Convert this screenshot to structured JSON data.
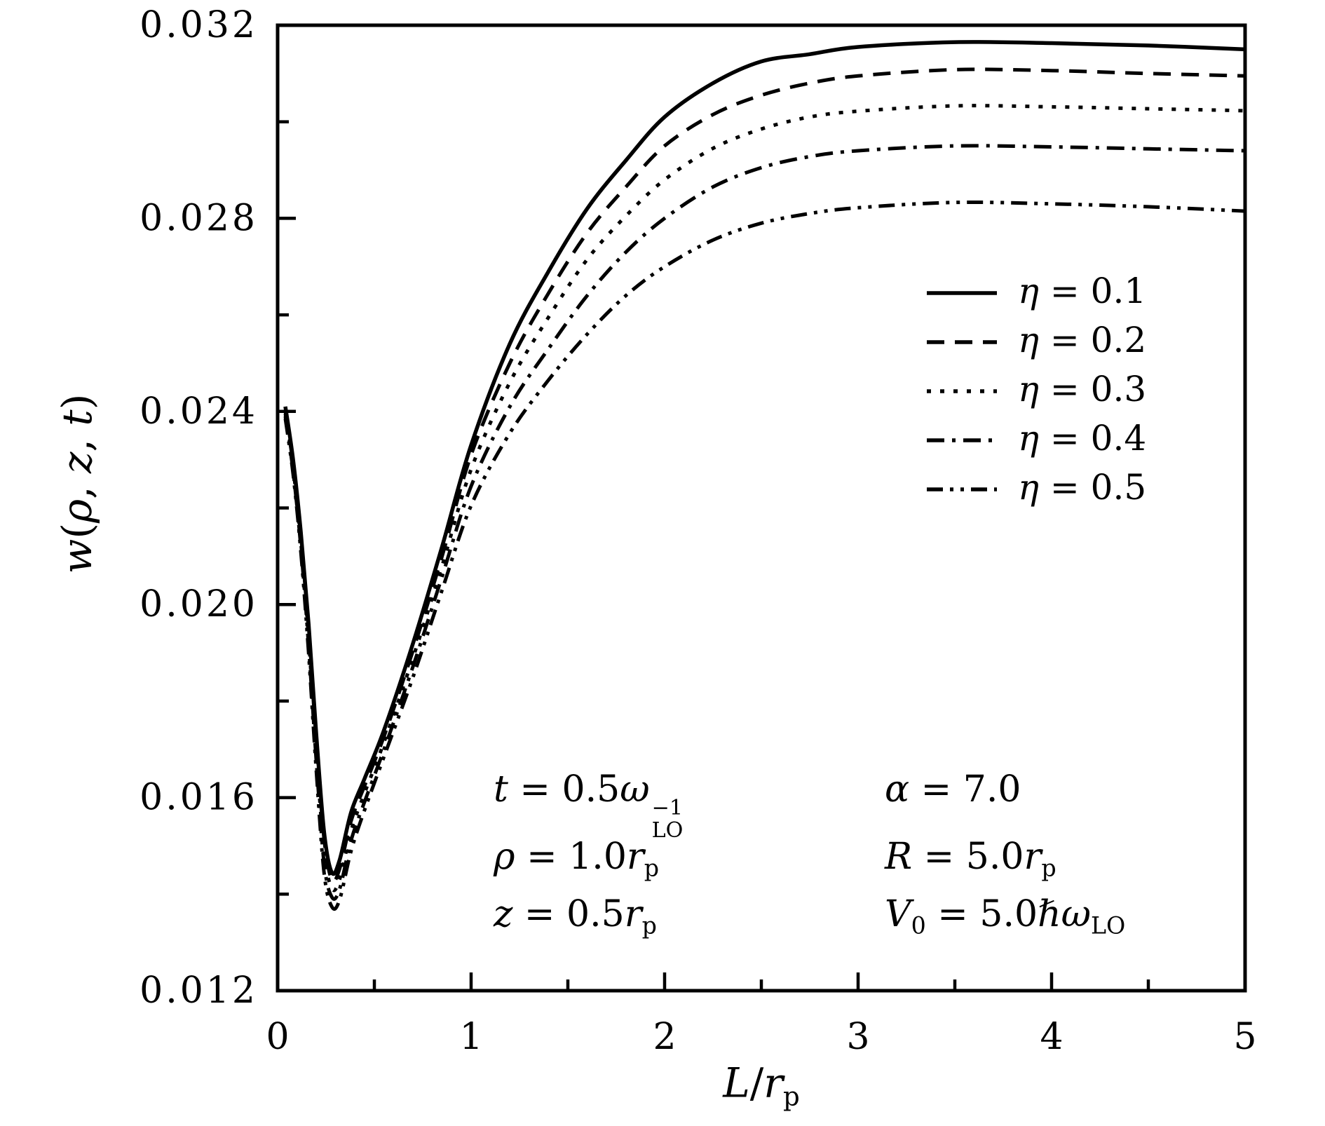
{
  "figure": {
    "background": "#ffffff",
    "line_color": "#000000",
    "xlabel_tokens": [
      {
        "t": "i",
        "v": "L"
      },
      {
        "t": "n",
        "v": "/"
      },
      {
        "t": "i",
        "v": "r"
      },
      {
        "t": "sub",
        "v": "p"
      }
    ],
    "ylabel_tokens": [
      {
        "t": "i",
        "v": "w"
      },
      {
        "t": "n",
        "v": "("
      },
      {
        "t": "i",
        "v": "ρ"
      },
      {
        "t": "n",
        "v": ", "
      },
      {
        "t": "i",
        "v": "z"
      },
      {
        "t": "n",
        "v": ", "
      },
      {
        "t": "i",
        "v": "t"
      },
      {
        "t": "n",
        "v": ")"
      }
    ]
  },
  "axes": {
    "x": {
      "range": [
        0,
        5
      ],
      "major": [
        0,
        1,
        2,
        3,
        4,
        5
      ],
      "tick_labels": [
        "0",
        "1",
        "2",
        "3",
        "4",
        "5"
      ],
      "minor": [
        0.5,
        1.5,
        2.5,
        3.5,
        4.5
      ]
    },
    "y": {
      "range": [
        0.012,
        0.032
      ],
      "major": [
        0.012,
        0.016,
        0.02,
        0.024,
        0.028,
        0.032
      ],
      "tick_labels": [
        "0.012",
        "0.016",
        "0.020",
        "0.024",
        "0.028",
        "0.032"
      ],
      "minor": [
        0.014,
        0.018,
        0.022,
        0.026,
        0.03
      ]
    }
  },
  "legend": {
    "entries": [
      {
        "style": "solid",
        "tokens": [
          {
            "t": "i",
            "v": "η"
          },
          {
            "t": "n",
            "v": " = 0.1"
          }
        ]
      },
      {
        "style": "dashed",
        "tokens": [
          {
            "t": "i",
            "v": "η"
          },
          {
            "t": "n",
            "v": " = 0.2"
          }
        ]
      },
      {
        "style": "dotted",
        "tokens": [
          {
            "t": "i",
            "v": "η"
          },
          {
            "t": "n",
            "v": " = 0.3"
          }
        ]
      },
      {
        "style": "dashdot",
        "tokens": [
          {
            "t": "i",
            "v": "η"
          },
          {
            "t": "n",
            "v": " = 0.4"
          }
        ]
      },
      {
        "style": "dashdotdot",
        "tokens": [
          {
            "t": "i",
            "v": "η"
          },
          {
            "t": "n",
            "v": " = 0.5"
          }
        ]
      }
    ]
  },
  "annotations": {
    "left": [
      {
        "tokens": [
          {
            "t": "i",
            "v": "t"
          },
          {
            "t": "n",
            "v": " = 0.5"
          },
          {
            "t": "i",
            "v": "ω"
          },
          {
            "t": "ss",
            "sup": "−1",
            "sub": "LO"
          }
        ]
      },
      {
        "tokens": [
          {
            "t": "i",
            "v": "ρ"
          },
          {
            "t": "n",
            "v": " = 1.0"
          },
          {
            "t": "i",
            "v": "r"
          },
          {
            "t": "sub",
            "v": "p"
          }
        ]
      },
      {
        "tokens": [
          {
            "t": "i",
            "v": "z"
          },
          {
            "t": "n",
            "v": " = 0.5"
          },
          {
            "t": "i",
            "v": "r"
          },
          {
            "t": "sub",
            "v": "p"
          }
        ]
      }
    ],
    "right": [
      {
        "tokens": [
          {
            "t": "i",
            "v": "α"
          },
          {
            "t": "n",
            "v": " = 7.0"
          }
        ]
      },
      {
        "tokens": [
          {
            "t": "i",
            "v": "R"
          },
          {
            "t": "n",
            "v": " = 5.0"
          },
          {
            "t": "i",
            "v": "r"
          },
          {
            "t": "sub",
            "v": "p"
          }
        ]
      },
      {
        "tokens": [
          {
            "t": "i",
            "v": "V"
          },
          {
            "t": "sub",
            "v": "0"
          },
          {
            "t": "n",
            "v": " = 5.0"
          },
          {
            "t": "i",
            "v": "ℏ"
          },
          {
            "t": "i",
            "v": "ω"
          },
          {
            "t": "sub",
            "v": "LO"
          }
        ]
      }
    ]
  },
  "chart_data": {
    "type": "line",
    "title": "",
    "xlabel": "L/r_p",
    "ylabel": "w(ρ, z, t)",
    "xlim": [
      0,
      5
    ],
    "ylim": [
      0.012,
      0.032
    ],
    "x_ticks": [
      0,
      1,
      2,
      3,
      4,
      5
    ],
    "y_ticks": [
      0.012,
      0.016,
      0.02,
      0.024,
      0.028,
      0.032
    ],
    "grid": false,
    "legend_position": "upper right",
    "annotations_text": [
      "t = 0.5ω_LO^-1",
      "ρ = 1.0r_p",
      "z = 0.5r_p",
      "α = 7.0",
      "R = 5.0r_p",
      "V_0 = 5.0ℏω_LO"
    ],
    "x": [
      0.04,
      0.08,
      0.12,
      0.16,
      0.2,
      0.24,
      0.28,
      0.32,
      0.38,
      0.45,
      0.55,
      0.7,
      0.85,
      1.0,
      1.2,
      1.4,
      1.6,
      1.8,
      2.0,
      2.25,
      2.5,
      2.75,
      3.0,
      3.5,
      4.0,
      4.5,
      5.0
    ],
    "series": [
      {
        "name": "η = 0.1",
        "eta": 0.1,
        "style": "solid",
        "y": [
          0.0241,
          0.023,
          0.0215,
          0.0196,
          0.0173,
          0.0153,
          0.01445,
          0.0147,
          0.0157,
          0.0164,
          0.0174,
          0.0192,
          0.0212,
          0.0233,
          0.0254,
          0.0269,
          0.0282,
          0.0292,
          0.0301,
          0.0308,
          0.03125,
          0.0314,
          0.03155,
          0.03165,
          0.03163,
          0.03158,
          0.0315
        ]
      },
      {
        "name": "η = 0.2",
        "eta": 0.2,
        "style": "dashed",
        "y": [
          0.024,
          0.0229,
          0.0214,
          0.01945,
          0.01715,
          0.01515,
          0.0143,
          0.01452,
          0.01552,
          0.01625,
          0.01727,
          0.01905,
          0.021,
          0.0231,
          0.025,
          0.02645,
          0.0277,
          0.02865,
          0.0295,
          0.03015,
          0.03055,
          0.0308,
          0.03095,
          0.03108,
          0.03106,
          0.031,
          0.03095
        ]
      },
      {
        "name": "η = 0.3",
        "eta": 0.3,
        "style": "dotted",
        "y": [
          0.02395,
          0.02283,
          0.0213,
          0.0193,
          0.01695,
          0.0149,
          0.01412,
          0.0143,
          0.01532,
          0.0161,
          0.01715,
          0.0189,
          0.0208,
          0.0228,
          0.0246,
          0.02595,
          0.02715,
          0.02805,
          0.0288,
          0.02945,
          0.02985,
          0.0301,
          0.03022,
          0.03033,
          0.03031,
          0.03027,
          0.03023
        ]
      },
      {
        "name": "η = 0.4",
        "eta": 0.4,
        "style": "dashdot",
        "y": [
          0.0239,
          0.02276,
          0.0212,
          0.01915,
          0.01675,
          0.01465,
          0.01394,
          0.0141,
          0.01512,
          0.01592,
          0.017,
          0.01872,
          0.02058,
          0.02245,
          0.0241,
          0.0253,
          0.0264,
          0.0273,
          0.028,
          0.02865,
          0.02905,
          0.02928,
          0.0294,
          0.0295,
          0.02948,
          0.02944,
          0.0294
        ]
      },
      {
        "name": "η = 0.5",
        "eta": 0.5,
        "style": "dashdotdot",
        "y": [
          0.02385,
          0.0227,
          0.0211,
          0.019,
          0.01655,
          0.01445,
          0.01374,
          0.01388,
          0.0149,
          0.01575,
          0.01685,
          0.0185,
          0.0203,
          0.02205,
          0.02355,
          0.02465,
          0.0256,
          0.0264,
          0.027,
          0.02755,
          0.0279,
          0.0281,
          0.02822,
          0.02833,
          0.0283,
          0.02824,
          0.02815
        ]
      }
    ]
  }
}
